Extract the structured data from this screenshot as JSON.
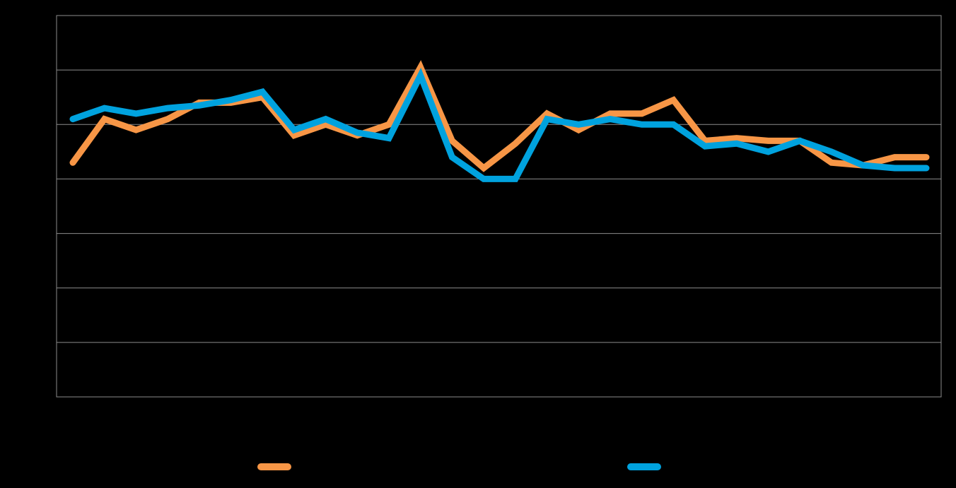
{
  "chart_data": {
    "type": "line",
    "title": "",
    "xlabel": "",
    "ylabel": "",
    "ylim": [
      0,
      7
    ],
    "y_gridlines": [
      0,
      1,
      2,
      3,
      4,
      5,
      6,
      7
    ],
    "grid": true,
    "legend_position": "bottom",
    "x": [
      1,
      2,
      3,
      4,
      5,
      6,
      7,
      8,
      9,
      10,
      11,
      12,
      13,
      14,
      15,
      16,
      17,
      18,
      19,
      20,
      21,
      22,
      23,
      24,
      25,
      26,
      27,
      28
    ],
    "series": [
      {
        "color": "#f79646",
        "values": [
          4.3,
          5.1,
          4.9,
          5.1,
          5.4,
          5.4,
          5.5,
          4.8,
          5.0,
          4.8,
          5.0,
          6.05,
          4.7,
          4.2,
          4.65,
          5.2,
          4.9,
          5.2,
          5.2,
          5.45,
          4.7,
          4.75,
          4.7,
          4.7,
          4.3,
          4.25,
          4.4,
          4.4
        ]
      },
      {
        "color": "#00a2de",
        "values": [
          5.1,
          5.3,
          5.2,
          5.3,
          5.35,
          5.45,
          5.6,
          4.9,
          5.1,
          4.85,
          4.75,
          5.9,
          4.4,
          4.0,
          4.0,
          5.1,
          5.0,
          5.1,
          5.0,
          5.0,
          4.6,
          4.65,
          4.5,
          4.7,
          4.5,
          4.25,
          4.2,
          4.2
        ]
      }
    ]
  }
}
